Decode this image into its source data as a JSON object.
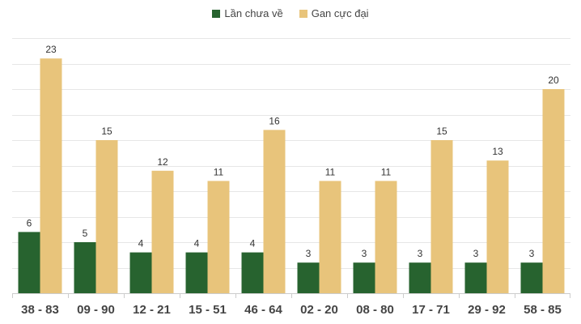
{
  "chart_data": {
    "type": "bar",
    "categories": [
      "38 - 83",
      "09 - 90",
      "12 - 21",
      "15 - 51",
      "46 - 64",
      "02 - 20",
      "08 - 80",
      "17 - 71",
      "29 - 92",
      "58 - 85"
    ],
    "series": [
      {
        "name": "Lần chưa về",
        "color": "#27632f",
        "values": [
          6,
          5,
          4,
          4,
          4,
          3,
          3,
          3,
          3,
          3
        ]
      },
      {
        "name": "Gan cực đại",
        "color": "#e8c47b",
        "values": [
          23,
          15,
          12,
          11,
          16,
          11,
          11,
          15,
          13,
          20
        ]
      }
    ],
    "ylim": [
      0,
      25
    ],
    "grid": true,
    "legend": "top-center",
    "title": "",
    "xlabel": "",
    "ylabel": ""
  }
}
